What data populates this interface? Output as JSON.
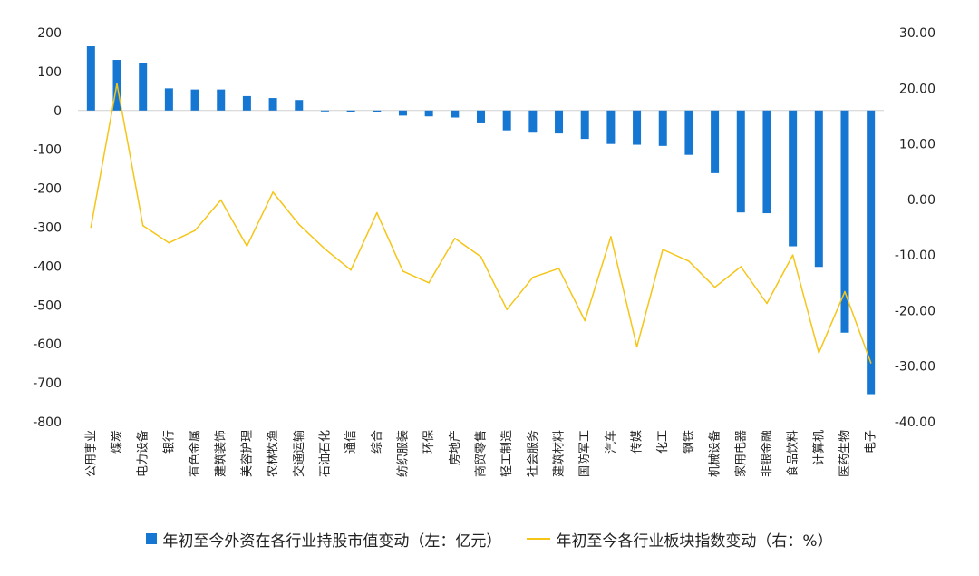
{
  "chart_data": {
    "type": "bar",
    "title": "",
    "categories": [
      "公用事业",
      "煤炭",
      "电力设备",
      "银行",
      "有色金属",
      "建筑装饰",
      "美容护理",
      "农林牧渔",
      "交通运输",
      "石油石化",
      "通信",
      "综合",
      "纺织服装",
      "环保",
      "房地产",
      "商贸零售",
      "轻工制造",
      "社会服务",
      "建筑材料",
      "国防军工",
      "汽车",
      "传媒",
      "化工",
      "钢铁",
      "机械设备",
      "家用电器",
      "非银金融",
      "食品饮料",
      "计算机",
      "医药生物",
      "电子"
    ],
    "series": [
      {
        "name": "年初至今外资在各行业持股市值变动（左：亿元）",
        "type": "bar",
        "axis": "left",
        "color": "#1677d2",
        "values": [
          165,
          130,
          121,
          57,
          54,
          54,
          37,
          32,
          27,
          -2,
          -3,
          -3,
          -13,
          -15,
          -18,
          -33,
          -51,
          -57,
          -59,
          -73,
          -86,
          -88,
          -91,
          -114,
          -161,
          -262,
          -264,
          -349,
          -402,
          -571,
          -729
        ]
      },
      {
        "name": "年初至今各行业板块指数变动（右：%）",
        "type": "line",
        "axis": "right",
        "color": "#f5c518",
        "values": [
          -5.0,
          20.8,
          -4.7,
          -7.8,
          -5.6,
          -0.1,
          -8.4,
          1.3,
          -4.5,
          -8.9,
          -12.7,
          -2.4,
          -12.9,
          -15.0,
          -7.0,
          -10.3,
          -19.8,
          -14.0,
          -12.4,
          -21.8,
          -6.7,
          -26.5,
          -9.0,
          -11.1,
          -15.8,
          -12.1,
          -18.7,
          -10.0,
          -27.6,
          -16.6,
          -29.4
        ]
      }
    ],
    "y_left": {
      "min": -800,
      "max": 200,
      "step": 100,
      "ticks": [
        "200",
        "100",
        "0",
        "-100",
        "-200",
        "-300",
        "-400",
        "-500",
        "-600",
        "-700",
        "-800"
      ]
    },
    "y_right": {
      "min": -40,
      "max": 30,
      "step": 10,
      "ticks": [
        "30.00",
        "20.00",
        "10.00",
        "0.00",
        "-10.00",
        "-20.00",
        "-30.00",
        "-40.00"
      ]
    },
    "grid": false,
    "legend_position": "bottom"
  }
}
